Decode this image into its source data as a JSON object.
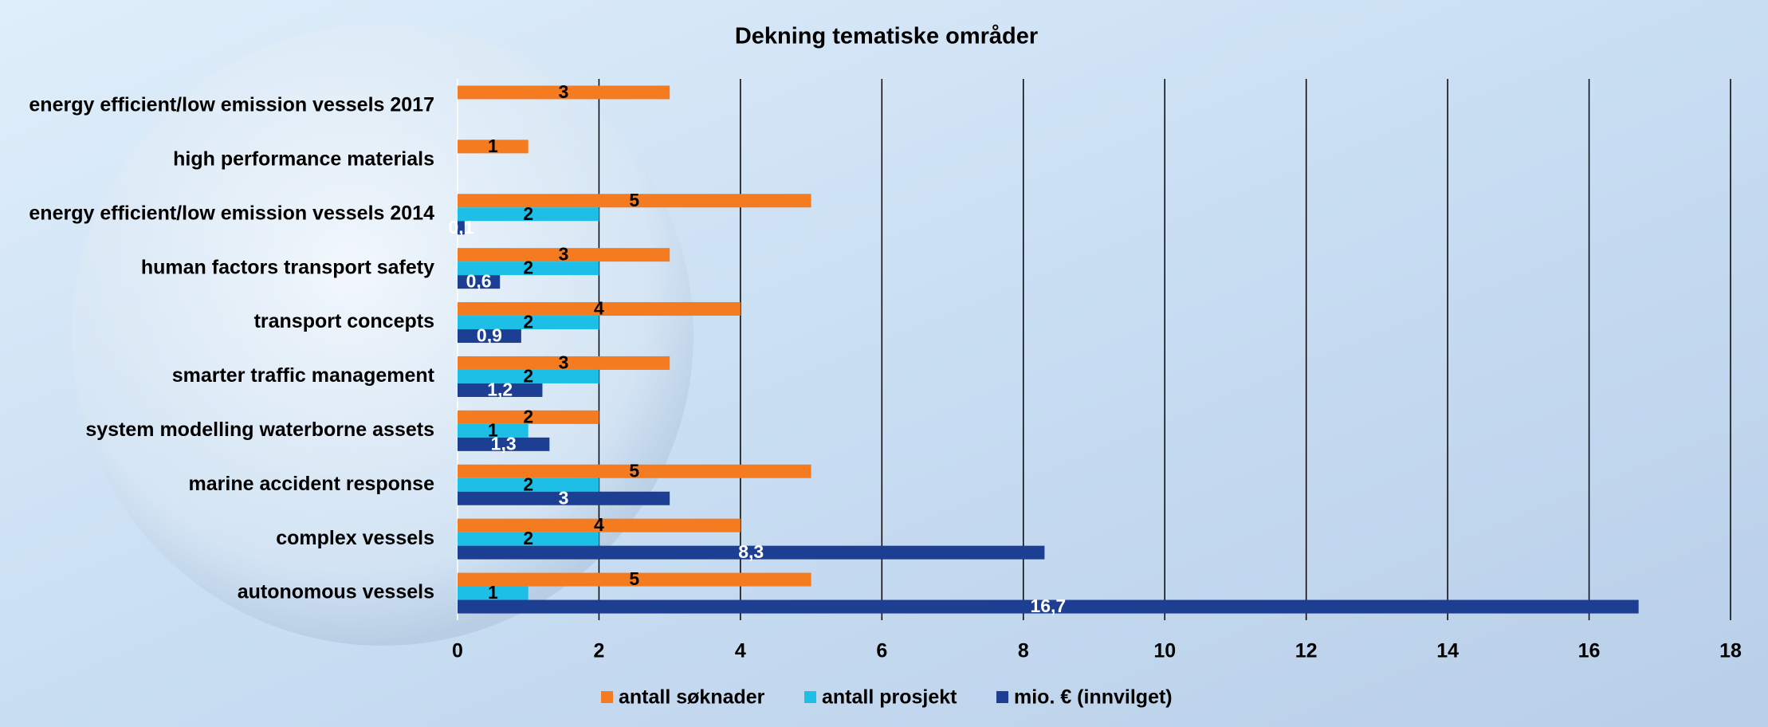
{
  "chart_data": {
    "type": "bar",
    "orientation": "horizontal",
    "title": "Dekning tematiske områder",
    "categories": [
      "energy efficient/low emission vessels 2017",
      "high performance materials",
      "energy efficient/low emission vessels 2014",
      "human factors transport safety",
      "transport concepts",
      "smarter traffic management",
      "system modelling waterborne assets",
      "marine accident response",
      "complex vessels",
      "autonomous vessels"
    ],
    "series": [
      {
        "name": "antall søknader",
        "color": "#f47b20",
        "values": [
          3,
          1,
          5,
          3,
          4,
          3,
          2,
          5,
          4,
          5
        ]
      },
      {
        "name": "antall prosjekt",
        "color": "#1ebfe6",
        "values": [
          null,
          null,
          2,
          2,
          2,
          2,
          1,
          2,
          2,
          1
        ]
      },
      {
        "name": "mio. € (innvilget)",
        "color": "#1c3f94",
        "values": [
          null,
          null,
          0.1,
          0.6,
          0.9,
          1.2,
          1.3,
          3,
          8.3,
          16.7
        ],
        "value_labels": [
          null,
          null,
          "0,1",
          "0,6",
          "0,9",
          "1,2",
          "1,3",
          "3",
          "8,3",
          "16,7"
        ]
      }
    ],
    "xlim": [
      0,
      18
    ],
    "xticks": [
      0,
      2,
      4,
      6,
      8,
      10,
      12,
      14,
      16,
      18
    ],
    "grid": true,
    "legend": "bottom"
  }
}
